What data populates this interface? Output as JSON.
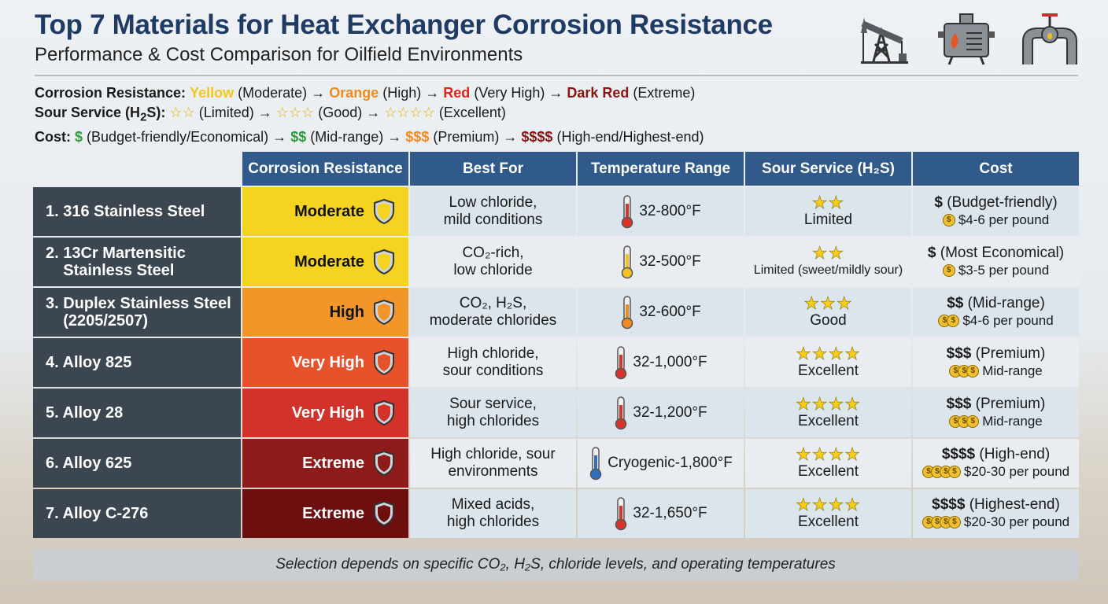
{
  "header": {
    "title": "Top 7 Materials for Heat Exchanger Corrosion Resistance",
    "subtitle": "Performance & Cost Comparison for Oilfield Environments",
    "icons": [
      "pump-jack-icon",
      "heat-exchanger-icon",
      "pipe-valve-icon"
    ]
  },
  "legend": {
    "corrosion": {
      "label": "Corrosion Resistance:",
      "items": [
        {
          "color": "Yellow",
          "level": "(Moderate)"
        },
        {
          "color": "Orange",
          "level": "(High)"
        },
        {
          "color": "Red",
          "level": "(Very High)"
        },
        {
          "color": "Dark Red",
          "level": "(Extreme)"
        }
      ]
    },
    "sour": {
      "label": "Sour Service (H",
      "label_sub": "2",
      "label_end": "S):",
      "items": [
        {
          "stars": "☆☆",
          "level": "(Limited)"
        },
        {
          "stars": "☆☆☆",
          "level": "(Good)"
        },
        {
          "stars": "☆☆☆☆",
          "level": "(Excellent)"
        }
      ]
    },
    "cost": {
      "label": "Cost:",
      "items": [
        {
          "sym": "$",
          "level": "(Budget-friendly/Economical)"
        },
        {
          "sym": "$$",
          "level": "(Mid-range)"
        },
        {
          "sym": "$$$",
          "level": "(Premium)"
        },
        {
          "sym": "$$$$",
          "level": "(High-end/Highest-end)"
        }
      ]
    },
    "arrow": "→"
  },
  "table": {
    "columns": [
      "Corrosion Resistance",
      "Best For",
      "Temperature Range",
      "Sour Service (H₂S)",
      "Cost"
    ],
    "rows": [
      {
        "name": "1. 316 Stainless Steel",
        "cr": "Moderate",
        "cr_color": "#f5d321",
        "best": [
          "Low chloride,",
          "mild conditions"
        ],
        "temp": "32-800°F",
        "therm": "#d9342a",
        "stars": 2,
        "sour": "Limited",
        "cost_sym": "$",
        "cost_desc": "(Budget-friendly)",
        "coins": 1,
        "price": "$4-6 per pound"
      },
      {
        "name": "2. 13Cr Martensitic\n    Stainless Steel",
        "cr": "Moderate",
        "cr_color": "#f5d321",
        "best": [
          "CO₂-rich,",
          "low chloride"
        ],
        "temp": "32-500°F",
        "therm": "#f2c21e",
        "stars": 2,
        "sour": "Limited (sweet/mildly sour)",
        "cost_sym": "$",
        "cost_desc": "(Most Economical)",
        "coins": 1,
        "price": "$3-5 per pound"
      },
      {
        "name": "3. Duplex Stainless Steel\n    (2205/2507)",
        "cr": "High",
        "cr_color": "#f2962a",
        "best": [
          "CO₂, H₂S,",
          "moderate chlorides"
        ],
        "temp": "32-600°F",
        "therm": "#f08a1e",
        "stars": 3,
        "sour": "Good",
        "cost_sym": "$$",
        "cost_desc": "(Mid-range)",
        "coins": 2,
        "price": "$4-6 per pound"
      },
      {
        "name": "4. Alloy 825",
        "cr": "Very High",
        "cr_color": "#e8522a",
        "best": [
          "High chloride,",
          "sour conditions"
        ],
        "temp": "32-1,000°F",
        "therm": "#d9342a",
        "stars": 4,
        "sour": "Excellent",
        "cost_sym": "$$$",
        "cost_desc": "(Premium)",
        "coins": 3,
        "price": "Mid-range"
      },
      {
        "name": "5. Alloy 28",
        "cr": "Very High",
        "cr_color": "#d2322a",
        "best": [
          "Sour service,",
          "high chlorides"
        ],
        "temp": "32-1,200°F",
        "therm": "#d9342a",
        "stars": 4,
        "sour": "Excellent",
        "cost_sym": "$$$",
        "cost_desc": "(Premium)",
        "coins": 3,
        "price": "Mid-range"
      },
      {
        "name": "6. Alloy 625",
        "cr": "Extreme",
        "cr_color": "#8e1a1a",
        "best": [
          "High chloride, sour",
          "environments"
        ],
        "temp": "Cryogenic-1,800°F",
        "therm": "#2f6fc0",
        "stars": 4,
        "sour": "Excellent",
        "cost_sym": "$$$$",
        "cost_desc": "(High-end)",
        "coins": 4,
        "price": "$20-30 per pound"
      },
      {
        "name": "7. Alloy C-276",
        "cr": "Extreme",
        "cr_color": "#6e0f0f",
        "best": [
          "Mixed acids,",
          "high chlorides"
        ],
        "temp": "32-1,650°F",
        "therm": "#d9342a",
        "stars": 4,
        "sour": "Excellent",
        "cost_sym": "$$$$",
        "cost_desc": "(Highest-end)",
        "coins": 4,
        "price": "$20-30 per pound"
      }
    ]
  },
  "footer": "Selection depends on specific CO₂, H₂S, chloride levels, and operating temperatures"
}
